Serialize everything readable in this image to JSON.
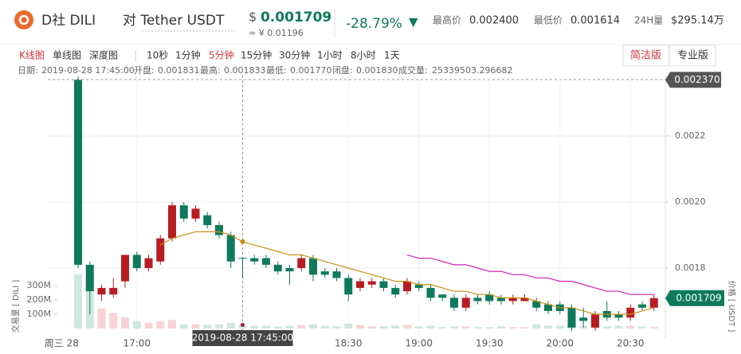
{
  "header": {
    "coin": "D社 DILI",
    "pair": "对 Tether USDT",
    "currency": "$",
    "price": "0.001709",
    "cny": "≈ ¥ 0.01196",
    "change": "-28.79%",
    "arrow": "▼",
    "high_label": "最高价",
    "high": "0.002400",
    "low_label": "最低价",
    "low": "0.001614",
    "vol_label": "24H量",
    "vol": "$295.14万"
  },
  "toolbar": {
    "chart_types": [
      "K线图",
      "单线图",
      "深度图"
    ],
    "active_chart_type": 0,
    "intervals": [
      "10秒",
      "1分钟",
      "5分钟",
      "15分钟",
      "30分钟",
      "1小时",
      "8小时",
      "1天"
    ],
    "active_interval": 2,
    "versions": [
      "简洁版",
      "专业版"
    ],
    "active_version": 0
  },
  "info_line": {
    "date_label": "日期:",
    "open_label": "开盘:",
    "open": "0.001831",
    "high_label": "最高:",
    "high": "0.001833",
    "low_label": "最低:",
    "low": "0.001770",
    "close_label": "闭盘:",
    "close": "0.001830",
    "volume_label": "成交量:",
    "volume": "25339503.296682"
  },
  "chart_data": {
    "type": "candlestick",
    "x_start_label": "周三 28",
    "categories": [
      null,
      null,
      null,
      null,
      null,
      "17:00",
      null,
      null,
      null,
      null,
      null,
      null,
      null,
      null,
      null,
      null,
      null,
      null,
      null,
      null,
      null,
      null,
      null,
      "18:30",
      null,
      null,
      null,
      null,
      null,
      "19:00",
      null,
      null,
      null,
      null,
      null,
      "19:30",
      null,
      null,
      null,
      null,
      null,
      "20:00",
      null,
      null,
      null,
      null,
      null,
      "20:30",
      null,
      null
    ],
    "open": [
      0.00237,
      0.00181,
      0.00172,
      0.00172,
      0.00176,
      0.00184,
      0.0018,
      0.00182,
      0.00189,
      0.00199,
      0.00195,
      0.00196,
      0.00193,
      0.0019,
      0.001831,
      0.00183,
      0.00183,
      0.00181,
      0.0018,
      0.0018,
      0.00183,
      0.00179,
      0.00179,
      0.00177,
      0.00174,
      0.00175,
      0.00176,
      0.00174,
      0.00173,
      0.00175,
      0.00174,
      0.00172,
      0.00171,
      0.00168,
      0.00171,
      0.00172,
      0.00171,
      0.0017,
      0.0017,
      0.0017,
      0.00169,
      0.00169,
      0.00168,
      0.00165,
      0.00162,
      0.00167,
      0.00166,
      0.00165,
      0.00169,
      0.00168
    ],
    "high": [
      0.00238,
      0.00182,
      0.00175,
      0.00177,
      0.00184,
      0.00185,
      0.00184,
      0.0019,
      0.002,
      0.002,
      0.00199,
      0.00197,
      0.00194,
      0.00191,
      0.001833,
      0.00184,
      0.00184,
      0.00182,
      0.00181,
      0.00184,
      0.00184,
      0.0018,
      0.0018,
      0.00178,
      0.00177,
      0.00177,
      0.00177,
      0.00175,
      0.00177,
      0.00176,
      0.00175,
      0.00172,
      0.00172,
      0.00172,
      0.00172,
      0.00173,
      0.00172,
      0.00172,
      0.00172,
      0.00171,
      0.0017,
      0.0017,
      0.00169,
      0.00168,
      0.00167,
      0.0017,
      0.00167,
      0.00169,
      0.0017,
      0.00172
    ],
    "low": [
      0.0018,
      0.00166,
      0.0017,
      0.00171,
      0.00174,
      0.00179,
      0.00179,
      0.00181,
      0.00188,
      0.00194,
      0.00194,
      0.00192,
      0.00189,
      0.0018,
      0.00177,
      0.00181,
      0.0018,
      0.00178,
      0.00175,
      0.00179,
      0.00176,
      0.00177,
      0.00176,
      0.0017,
      0.00173,
      0.00174,
      0.00173,
      0.00171,
      0.00172,
      0.00173,
      0.0017,
      0.0017,
      0.00167,
      0.00167,
      0.00169,
      0.00169,
      0.00169,
      0.00169,
      0.0017,
      0.00167,
      0.00166,
      0.00166,
      0.00161,
      0.00162,
      0.00161,
      0.00164,
      0.00164,
      0.00164,
      0.00167,
      0.00167
    ],
    "close": [
      0.00181,
      0.00173,
      0.00174,
      0.00174,
      0.00184,
      0.0018,
      0.00183,
      0.00189,
      0.00199,
      0.00195,
      0.00198,
      0.00193,
      0.0019,
      0.00182,
      0.00183,
      0.00182,
      0.00181,
      0.00179,
      0.00179,
      0.00183,
      0.00178,
      0.00178,
      0.00177,
      0.00172,
      0.00176,
      0.00176,
      0.00174,
      0.00172,
      0.00176,
      0.00174,
      0.00171,
      0.00171,
      0.00168,
      0.00171,
      0.0017,
      0.0017,
      0.0017,
      0.00171,
      0.00171,
      0.00168,
      0.00167,
      0.00167,
      0.00162,
      0.00164,
      0.00166,
      0.00165,
      0.00165,
      0.00168,
      0.00168,
      0.001709
    ],
    "volume": [
      380000000,
      370000000,
      140000000,
      110000000,
      80000000,
      50000000,
      40000000,
      50000000,
      60000000,
      30000000,
      30000000,
      25000000,
      30000000,
      40000000,
      25339503.296682,
      20000000,
      20000000,
      15000000,
      20000000,
      25000000,
      30000000,
      20000000,
      15000000,
      35000000,
      25000000,
      15000000,
      15000000,
      20000000,
      25000000,
      15000000,
      20000000,
      10000000,
      15000000,
      15000000,
      10000000,
      10000000,
      15000000,
      10000000,
      10000000,
      30000000,
      20000000,
      20000000,
      45000000,
      20000000,
      30000000,
      15000000,
      20000000,
      20000000,
      15000000,
      10000000
    ],
    "series": [
      {
        "color": "#c8901a",
        "values": [
          null,
          null,
          null,
          null,
          null,
          null,
          null,
          0.00187,
          0.00189,
          0.0019,
          0.00191,
          0.00191,
          0.00191,
          0.0019,
          0.00188,
          0.00187,
          0.00186,
          0.00185,
          0.00184,
          0.00184,
          0.00183,
          0.00182,
          0.00181,
          0.0018,
          0.00179,
          0.00178,
          0.00177,
          0.00176,
          0.00176,
          0.00175,
          0.00175,
          0.00174,
          0.00173,
          0.00173,
          0.00172,
          0.00172,
          0.00171,
          0.00171,
          0.00171,
          0.0017,
          0.00169,
          0.00168,
          0.00168,
          0.00167,
          0.00166,
          0.00166,
          0.00166,
          0.00166,
          0.00167,
          0.00168
        ]
      },
      {
        "color": "#d020b0",
        "values": [
          null,
          null,
          null,
          null,
          null,
          null,
          null,
          null,
          null,
          null,
          null,
          null,
          null,
          null,
          null,
          null,
          null,
          null,
          null,
          null,
          null,
          null,
          null,
          null,
          null,
          null,
          null,
          null,
          0.00184,
          0.00183,
          0.00183,
          0.00182,
          0.00181,
          0.00181,
          0.0018,
          0.00179,
          0.00179,
          0.00178,
          0.00178,
          0.00177,
          0.00177,
          0.00176,
          0.00176,
          0.00175,
          0.00174,
          0.00173,
          0.00173,
          0.00172,
          0.00172,
          0.00172
        ]
      }
    ],
    "up_color": "#b71c23",
    "down_color": "#0e7a5c",
    "volume_up_color": "#f6d3d4",
    "volume_down_color": "#cfe7de",
    "ylim": [
      0.001588,
      0.002383
    ],
    "yticks": [
      0.0018,
      {
        "value": 0.002,
        "label": "0.0020"
      },
      0.0022
    ],
    "volume_ylim": [
      0,
      400000000
    ],
    "volume_ticks": [
      {
        "value": 100000000,
        "label": "100M"
      },
      {
        "value": 200000000,
        "label": "200M"
      },
      {
        "value": 300000000,
        "label": "300M"
      }
    ],
    "volume_axis_label": "交易量 [ DILI ]",
    "price_axis_label": "价格 [ USDT ]",
    "crosshair_index": 14,
    "crosshair": {
      "date": "2019-08-28 17:45:00",
      "price": {
        "value": 0.00237,
        "label": "0.002370"
      }
    },
    "last_price": 0.001709,
    "grid": true
  }
}
